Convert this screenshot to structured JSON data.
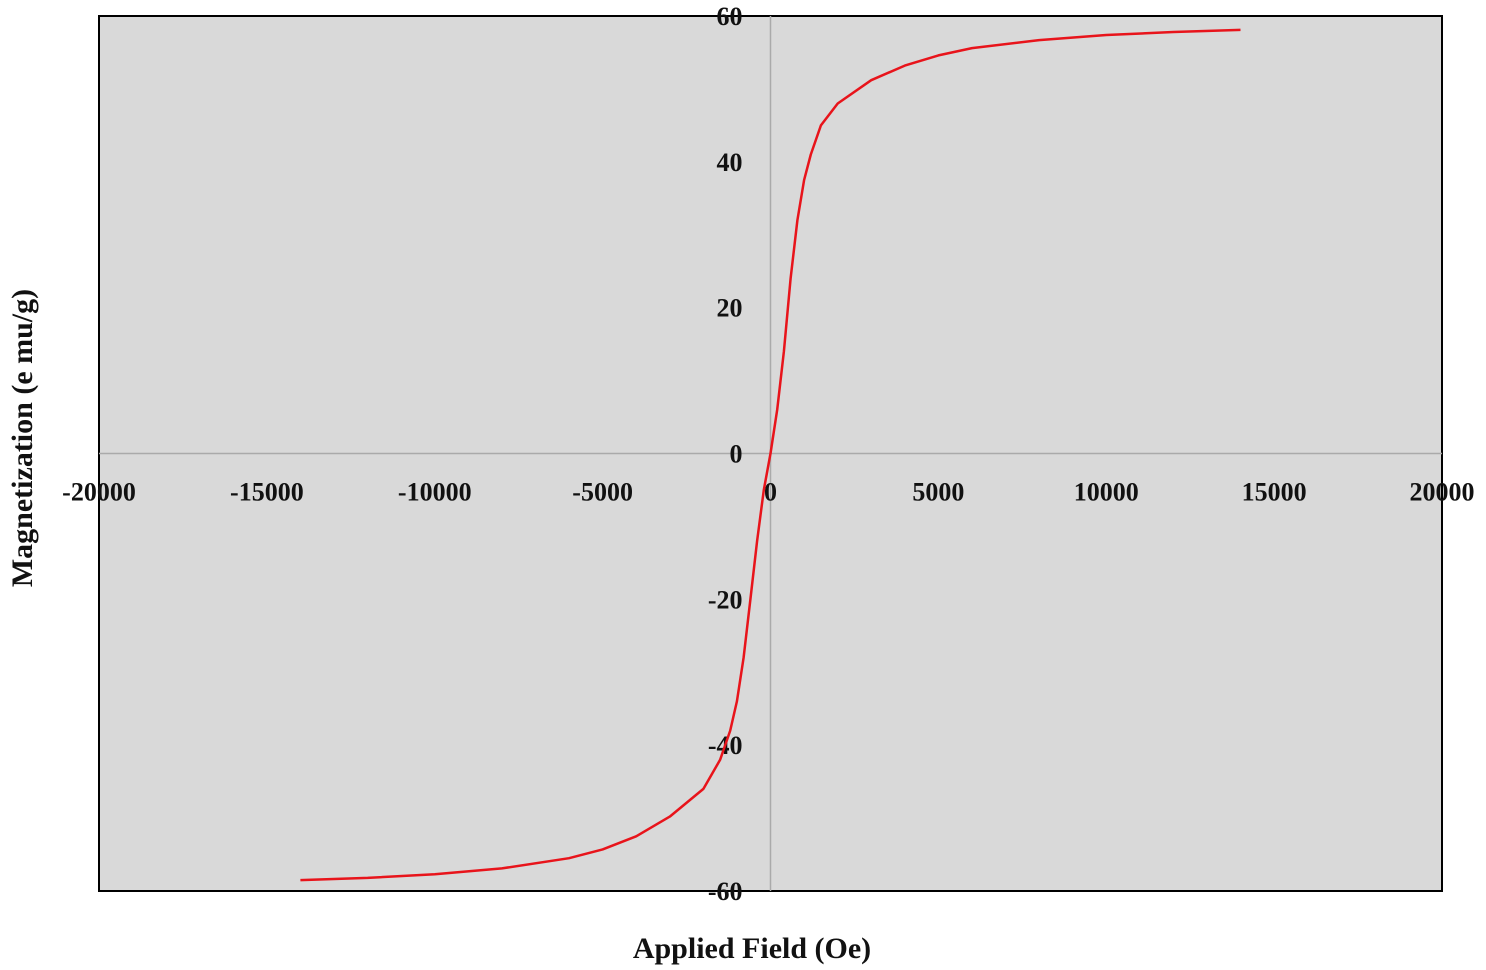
{
  "chart_data": {
    "type": "line",
    "title": "",
    "xlabel": "Applied Field (Oe)",
    "ylabel": "Magnetization (e mu/g)",
    "xlim": [
      -20000,
      20000
    ],
    "ylim": [
      -60,
      60
    ],
    "x_ticks": [
      -20000,
      -15000,
      -10000,
      -5000,
      0,
      5000,
      10000,
      15000,
      20000
    ],
    "x_tick_labels": [
      "-20000",
      "-15000",
      "-10000",
      "-5000",
      "0",
      "5000",
      "10000",
      "15000",
      "20000"
    ],
    "y_ticks": [
      -60,
      -40,
      -20,
      0,
      20,
      40,
      60
    ],
    "y_tick_labels": [
      "-60",
      "-40",
      "-20",
      "0",
      "20",
      "40",
      "60"
    ],
    "grid": false,
    "zero_lines": true,
    "plot_background": "#d9d9d9",
    "series": [
      {
        "color": "#e8141b",
        "x": [
          -14000,
          -12000,
          -10000,
          -8000,
          -6000,
          -5000,
          -4000,
          -3000,
          -2000,
          -1500,
          -1200,
          -1000,
          -800,
          -600,
          -400,
          -200,
          0,
          200,
          400,
          600,
          800,
          1000,
          1200,
          1500,
          2000,
          3000,
          4000,
          5000,
          6000,
          8000,
          10000,
          12000,
          14000
        ],
        "y": [
          -58.5,
          -58.2,
          -57.7,
          -56.9,
          -55.5,
          -54.3,
          -52.5,
          -49.8,
          -46.0,
          -42.0,
          -38.0,
          -34.0,
          -28.0,
          -20.0,
          -12.0,
          -5.0,
          0.0,
          6.0,
          14.0,
          24.0,
          32.0,
          37.5,
          41.0,
          45.0,
          48.0,
          51.2,
          53.2,
          54.6,
          55.6,
          56.7,
          57.4,
          57.8,
          58.1
        ]
      }
    ]
  }
}
